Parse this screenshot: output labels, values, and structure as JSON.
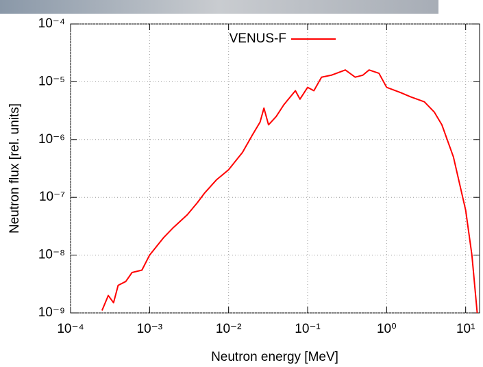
{
  "chart_data": {
    "type": "line",
    "xlabel": "Neutron energy [MeV]",
    "ylabel": "Neutron flux [rel. units]",
    "x": [
      0.00025,
      0.0003,
      0.00035,
      0.0004,
      0.0005,
      0.0006,
      0.0008,
      0.001,
      0.0015,
      0.002,
      0.003,
      0.004,
      0.005,
      0.007,
      0.01,
      0.015,
      0.02,
      0.025,
      0.028,
      0.032,
      0.04,
      0.05,
      0.07,
      0.08,
      0.1,
      0.12,
      0.15,
      0.2,
      0.3,
      0.4,
      0.5,
      0.6,
      0.8,
      1,
      1.5,
      2,
      3,
      4,
      5,
      7,
      10,
      12,
      14
    ],
    "series": [
      {
        "name": "VENUS-F",
        "color": "#ff0000",
        "values": [
          1.1e-09,
          2e-09,
          1.5e-09,
          3e-09,
          3.5e-09,
          5e-09,
          5.5e-09,
          1e-08,
          2e-08,
          3e-08,
          5e-08,
          8e-08,
          1.2e-07,
          2e-07,
          3e-07,
          6e-07,
          1.2e-06,
          2e-06,
          3.5e-06,
          1.8e-06,
          2.5e-06,
          4e-06,
          7e-06,
          5e-06,
          8e-06,
          7e-06,
          1.2e-05,
          1.3e-05,
          1.6e-05,
          1.2e-05,
          1.3e-05,
          1.6e-05,
          1.4e-05,
          8e-06,
          6.5e-06,
          5.5e-06,
          4.5e-06,
          3e-06,
          1.8e-06,
          5e-07,
          6e-08,
          1e-08,
          1e-09
        ]
      }
    ],
    "xlog": true,
    "ylog": true,
    "grid": true,
    "legend": "top",
    "xlim": [
      0.0001,
      15
    ],
    "ylim": [
      1e-09,
      0.0001
    ],
    "xticks": [
      {
        "value": 0.0001,
        "label": "10⁻⁴"
      },
      {
        "value": 0.001,
        "label": "10⁻³"
      },
      {
        "value": 0.01,
        "label": "10⁻²"
      },
      {
        "value": 0.1,
        "label": "10⁻¹"
      },
      {
        "value": 1,
        "label": "10⁰"
      },
      {
        "value": 10,
        "label": "10¹"
      }
    ],
    "yticks": [
      {
        "value": 1e-09,
        "label": "10⁻⁹"
      },
      {
        "value": 1e-08,
        "label": "10⁻⁸"
      },
      {
        "value": 1e-07,
        "label": "10⁻⁷"
      },
      {
        "value": 1e-06,
        "label": "10⁻⁶"
      },
      {
        "value": 1e-05,
        "label": "10⁻⁵"
      },
      {
        "value": 0.0001,
        "label": "10⁻⁴"
      }
    ]
  }
}
